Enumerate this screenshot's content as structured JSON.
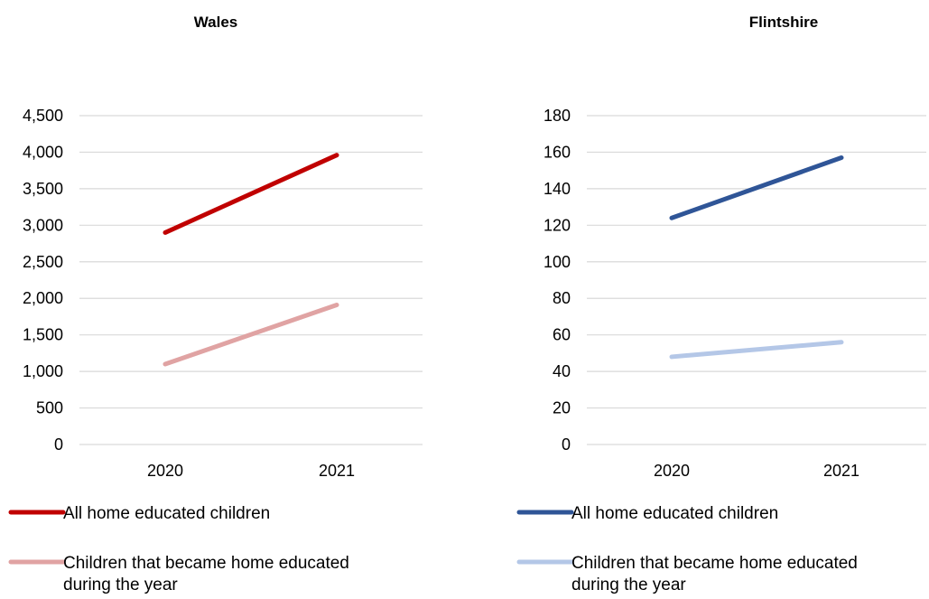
{
  "chart_data": [
    {
      "type": "line",
      "title": "Wales",
      "categories": [
        "2020",
        "2021"
      ],
      "ylim": [
        0,
        4500
      ],
      "yticks": [
        0,
        500,
        1000,
        1500,
        2000,
        2500,
        3000,
        3500,
        4000,
        4500
      ],
      "ytick_labels": [
        "0",
        "500",
        "1,000",
        "1,500",
        "2,000",
        "2,500",
        "3,000",
        "3,500",
        "4,000",
        "4,500"
      ],
      "grid": true,
      "legend_position": "bottom",
      "series": [
        {
          "name": "All home educated children",
          "values": [
            2900,
            3960
          ],
          "color": "#c00000"
        },
        {
          "name": "Children that became home educated during the year",
          "values": [
            1100,
            1910
          ],
          "color": "#e0a3a3"
        }
      ]
    },
    {
      "type": "line",
      "title": "Flintshire",
      "categories": [
        "2020",
        "2021"
      ],
      "ylim": [
        0,
        180
      ],
      "yticks": [
        0,
        20,
        40,
        60,
        80,
        100,
        120,
        140,
        160,
        180
      ],
      "ytick_labels": [
        "0",
        "20",
        "40",
        "60",
        "80",
        "100",
        "120",
        "140",
        "160",
        "180"
      ],
      "grid": true,
      "legend_position": "bottom",
      "series": [
        {
          "name": "All home educated children",
          "values": [
            124,
            157
          ],
          "color": "#2f5597"
        },
        {
          "name": "Children that became home educated during the year",
          "values": [
            48,
            56
          ],
          "color": "#b4c7e7"
        }
      ]
    }
  ]
}
